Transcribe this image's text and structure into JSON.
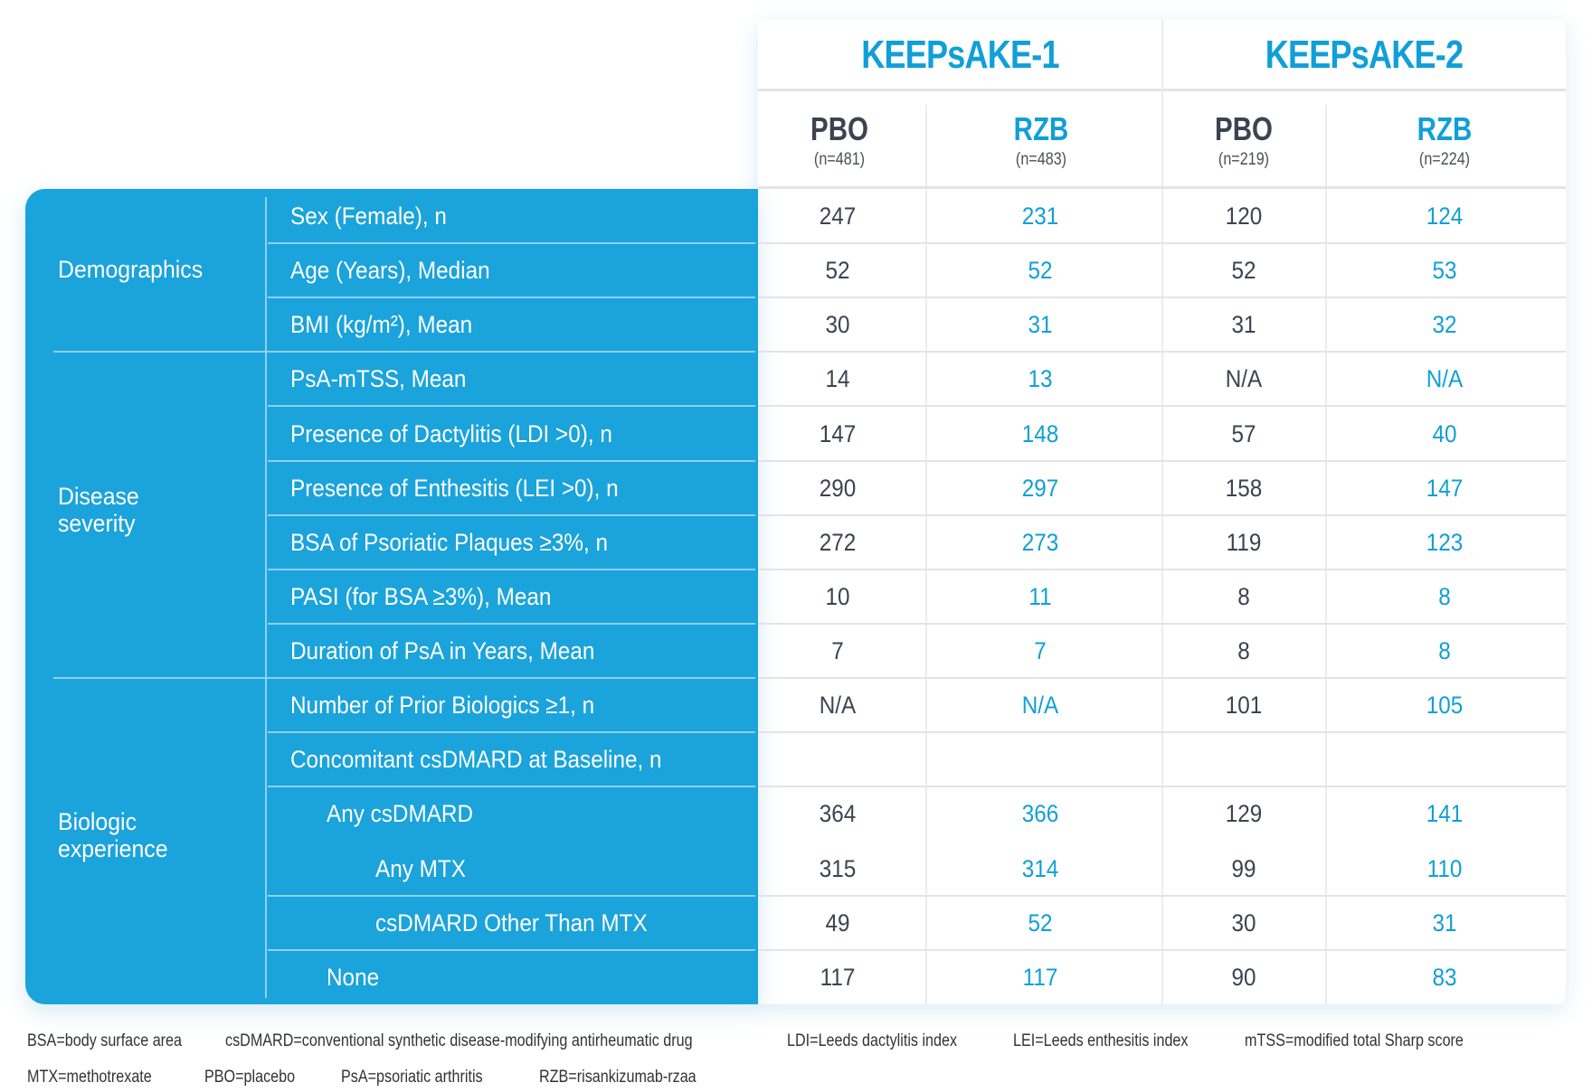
{
  "header": {
    "studies": [
      "KEEPsAKE-1",
      "KEEPsAKE-2"
    ],
    "arms": [
      {
        "label": "PBO",
        "n": "(n=481)"
      },
      {
        "label": "RZB",
        "n": "(n=483)"
      },
      {
        "label": "PBO",
        "n": "(n=219)"
      },
      {
        "label": "RZB",
        "n": "(n=224)"
      }
    ]
  },
  "groups": [
    {
      "label": "Demographics"
    },
    {
      "label": "Disease severity"
    },
    {
      "label": "Biologic experience"
    }
  ],
  "rows": [
    {
      "label": "Sex (Female), n",
      "values": [
        "247",
        "231",
        "120",
        "124"
      ]
    },
    {
      "label": "Age (Years), Median",
      "values": [
        "52",
        "52",
        "52",
        "53"
      ]
    },
    {
      "label": "BMI (kg/m²), Mean",
      "values": [
        "30",
        "31",
        "31",
        "32"
      ]
    },
    {
      "label": "PsA-mTSS, Mean",
      "values": [
        "14",
        "13",
        "N/A",
        "N/A"
      ]
    },
    {
      "label": "Presence of Dactylitis (LDI >0), n",
      "values": [
        "147",
        "148",
        "57",
        "40"
      ]
    },
    {
      "label": "Presence of Enthesitis (LEI >0), n",
      "values": [
        "290",
        "297",
        "158",
        "147"
      ]
    },
    {
      "label": "BSA of Psoriatic Plaques ≥3%, n",
      "values": [
        "272",
        "273",
        "119",
        "123"
      ]
    },
    {
      "label": "PASI (for BSA ≥3%), Mean",
      "values": [
        "10",
        "11",
        "8",
        "8"
      ]
    },
    {
      "label": "Duration of PsA in Years, Mean",
      "values": [
        "7",
        "7",
        "8",
        "8"
      ]
    },
    {
      "label": "Number of Prior Biologics ≥1, n",
      "values": [
        "N/A",
        "N/A",
        "101",
        "105"
      ]
    },
    {
      "label": "Concomitant csDMARD at Baseline, n",
      "values": [
        "",
        "",
        "",
        ""
      ]
    },
    {
      "label": "Any csDMARD",
      "values": [
        "364",
        "366",
        "129",
        "141"
      ]
    },
    {
      "label": "Any MTX",
      "values": [
        "315",
        "314",
        "99",
        "110"
      ]
    },
    {
      "label": "csDMARD Other Than MTX",
      "values": [
        "49",
        "52",
        "30",
        "31"
      ]
    },
    {
      "label": "None",
      "values": [
        "117",
        "117",
        "90",
        "83"
      ]
    }
  ],
  "footnotes": [
    "BSA=body surface area",
    "csDMARD=conventional synthetic disease-modifying antirheumatic drug",
    "LDI=Leeds dactylitis index",
    "LEI=Leeds enthesitis index",
    "mTSS=modified total Sharp score",
    "MTX=methotrexate",
    "PBO=placebo",
    "PsA=psoriatic arthritis",
    "RZB=risankizumab-rzaa"
  ],
  "colors": {
    "accent": "#1ba3db",
    "text_dark": "#3c4350",
    "text_accent": "#109fd8"
  }
}
